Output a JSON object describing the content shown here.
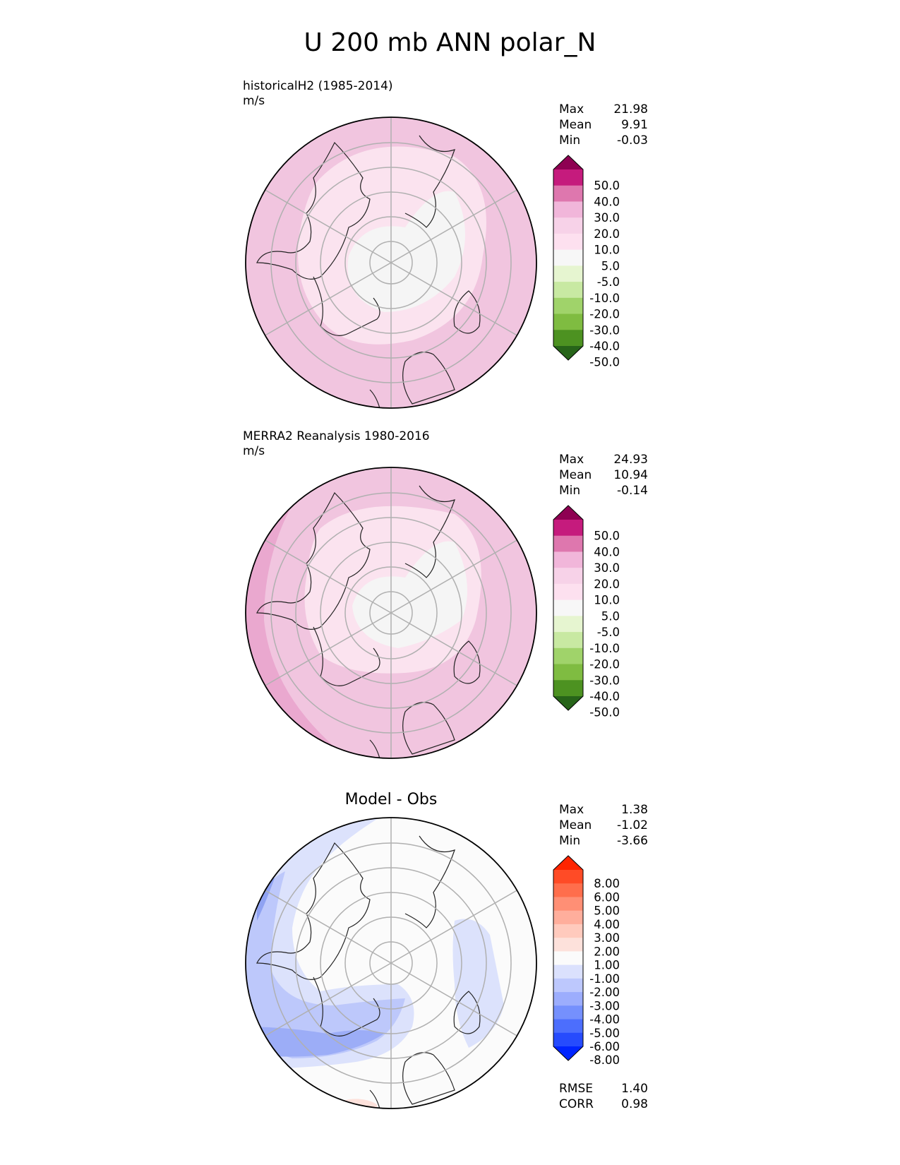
{
  "title": "U 200 mb ANN polar_N",
  "panels": [
    {
      "id": "test",
      "label_line1": "historicalH2 (1985-2014)",
      "label_line2": "m/s",
      "stats": [
        {
          "name": "Max",
          "value": "21.98"
        },
        {
          "name": "Mean",
          "value": "9.91"
        },
        {
          "name": "Min",
          "value": "-0.03"
        }
      ],
      "colorbar": {
        "ticks": [
          "50.0",
          "40.0",
          "30.0",
          "20.0",
          "10.0",
          "5.0",
          "-5.0",
          "-10.0",
          "-20.0",
          "-30.0",
          "-40.0",
          "-50.0"
        ],
        "colors": [
          "#8e0152",
          "#c51b7d",
          "#de77ae",
          "#f1b6da",
          "#f7d2e8",
          "#fde0ef",
          "#f7f7f7",
          "#e6f5d0",
          "#c8e9a2",
          "#a0d36a",
          "#7fbc41",
          "#4d9221",
          "#276419"
        ]
      }
    },
    {
      "id": "reference",
      "label_line1": "MERRA2 Reanalysis 1980-2016",
      "label_line2": "m/s",
      "stats": [
        {
          "name": "Max",
          "value": "24.93"
        },
        {
          "name": "Mean",
          "value": "10.94"
        },
        {
          "name": "Min",
          "value": "-0.14"
        }
      ],
      "colorbar": {
        "ticks": [
          "50.0",
          "40.0",
          "30.0",
          "20.0",
          "10.0",
          "5.0",
          "-5.0",
          "-10.0",
          "-20.0",
          "-30.0",
          "-40.0",
          "-50.0"
        ],
        "colors": [
          "#8e0152",
          "#c51b7d",
          "#de77ae",
          "#f1b6da",
          "#f7d2e8",
          "#fde0ef",
          "#f7f7f7",
          "#e6f5d0",
          "#c8e9a2",
          "#a0d36a",
          "#7fbc41",
          "#4d9221",
          "#276419"
        ]
      }
    },
    {
      "id": "diff",
      "center_label": "Model - Obs",
      "stats": [
        {
          "name": "Max",
          "value": "1.38"
        },
        {
          "name": "Mean",
          "value": "-1.02"
        },
        {
          "name": "Min",
          "value": "-3.66"
        }
      ],
      "footer": [
        {
          "name": "RMSE",
          "value": "1.40"
        },
        {
          "name": "CORR",
          "value": "0.98"
        }
      ],
      "colorbar": {
        "ticks": [
          "8.00",
          "6.00",
          "5.00",
          "4.00",
          "3.00",
          "2.00",
          "1.00",
          "-1.00",
          "-2.00",
          "-3.00",
          "-4.00",
          "-5.00",
          "-6.00",
          "-8.00"
        ],
        "colors": [
          "#ff2400",
          "#ff4b26",
          "#ff6e4c",
          "#ff8f75",
          "#ffae9c",
          "#ffcabd",
          "#fde1db",
          "#fbfbfb",
          "#dbe1fd",
          "#bdc8fd",
          "#9cadfd",
          "#7590fd",
          "#4c6efd",
          "#264bfd",
          "#0024ff"
        ]
      }
    }
  ]
}
